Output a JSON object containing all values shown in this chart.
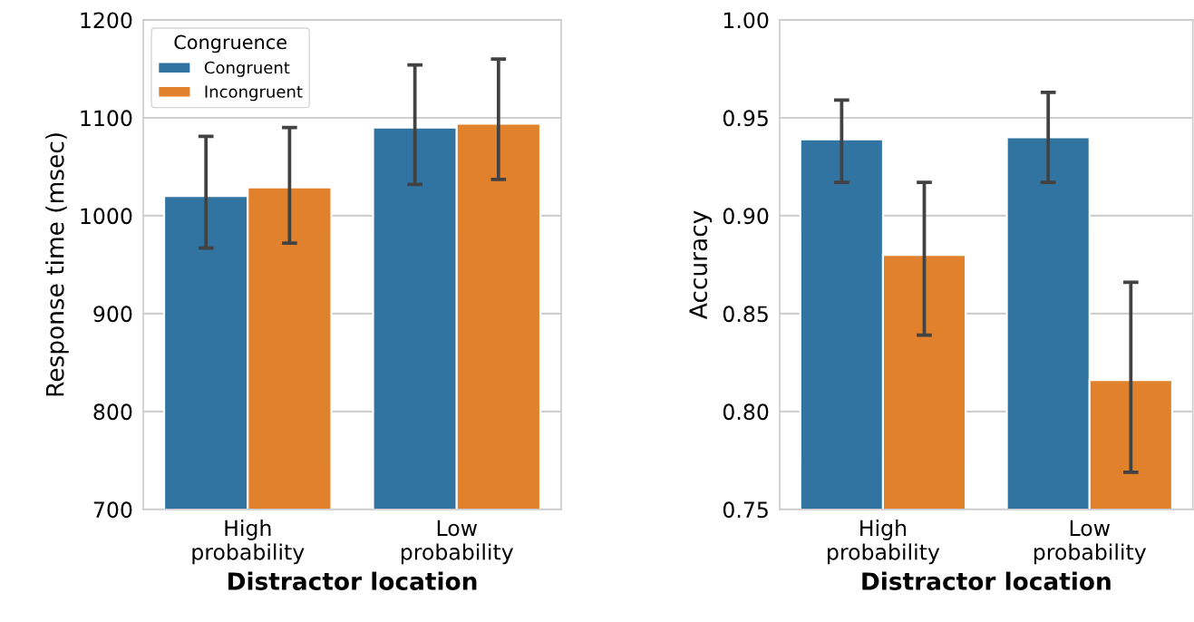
{
  "chart_data": [
    {
      "type": "bar",
      "xlabel": "Distractor location",
      "ylabel": "Response time (msec)",
      "categories": [
        "High\nprobability",
        "Low\nprobability"
      ],
      "ylim": [
        700,
        1200
      ],
      "yticks": [
        700,
        800,
        900,
        1000,
        1100,
        1200
      ],
      "grid": "y",
      "legend": "top left",
      "legend_title": "Congruence",
      "series": [
        {
          "name": "Congruent",
          "color": "#3274a1",
          "values": [
            1020,
            1090
          ],
          "errors": [
            [
              967,
              1081
            ],
            [
              1032,
              1154
            ]
          ]
        },
        {
          "name": "Incongruent",
          "color": "#e1812c",
          "values": [
            1029,
            1094
          ],
          "errors": [
            [
              972,
              1090
            ],
            [
              1037,
              1160
            ]
          ]
        }
      ]
    },
    {
      "type": "bar",
      "xlabel": "Distractor location",
      "ylabel": "Accuracy",
      "categories": [
        "High\nprobability",
        "Low\nprobability"
      ],
      "ylim": [
        0.75,
        1.0
      ],
      "yticks": [
        {
          "value": 0.75,
          "label": "0.75"
        },
        {
          "value": 0.8,
          "label": "0.80"
        },
        {
          "value": 0.85,
          "label": "0.85"
        },
        {
          "value": 0.9,
          "label": "0.90"
        },
        {
          "value": 0.95,
          "label": "0.95"
        },
        {
          "value": 1.0,
          "label": "1.00"
        }
      ],
      "grid": "y",
      "series": [
        {
          "color": "#3274a1",
          "values": [
            0.939,
            0.94
          ],
          "errors": [
            [
              0.917,
              0.959
            ],
            [
              0.917,
              0.963
            ]
          ]
        },
        {
          "color": "#e1812c",
          "values": [
            0.88,
            0.816
          ],
          "errors": [
            [
              0.839,
              0.917
            ],
            [
              0.769,
              0.866
            ]
          ]
        }
      ]
    }
  ]
}
